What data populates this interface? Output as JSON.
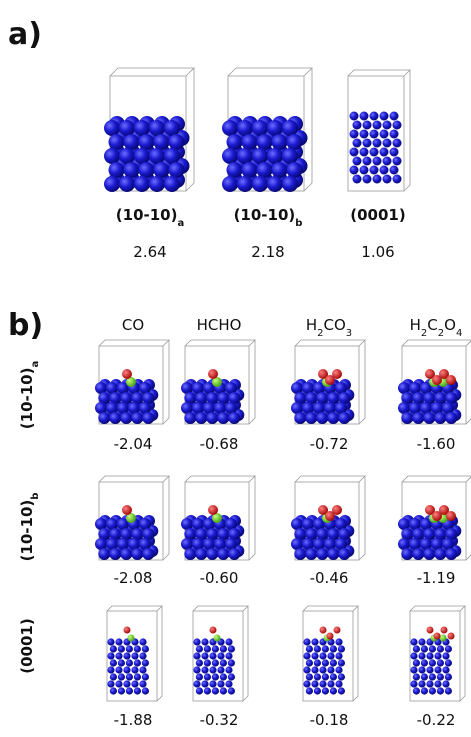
{
  "panel_a": {
    "label": "a)",
    "surfaces": [
      {
        "name": "(10-10)",
        "subscript": "a",
        "value": "2.64"
      },
      {
        "name": "(10-10)",
        "subscript": "b",
        "value": "2.18"
      },
      {
        "name": "(0001)",
        "value": "1.06"
      }
    ]
  },
  "panel_b": {
    "label": "b)",
    "columns": [
      [
        {
          "text": "CO"
        }
      ],
      [
        {
          "text": "HCHO"
        }
      ],
      [
        {
          "text": "H"
        },
        {
          "text": "2",
          "sub": true
        },
        {
          "text": "CO"
        },
        {
          "text": "3",
          "sub": true
        }
      ],
      [
        {
          "text": "H"
        },
        {
          "text": "2",
          "sub": true
        },
        {
          "text": "C"
        },
        {
          "text": "2",
          "sub": true
        },
        {
          "text": "O"
        },
        {
          "text": "4",
          "sub": true
        }
      ]
    ],
    "rows": [
      {
        "name": "(10-10)",
        "subscript": "a",
        "values": [
          "-2.04",
          "-0.68",
          "-0.72",
          "-1.60"
        ]
      },
      {
        "name": "(10-10)",
        "subscript": "b",
        "values": [
          "-2.08",
          "-0.60",
          "-0.46",
          "-1.19"
        ]
      },
      {
        "name": "(0001)",
        "values": [
          "-1.88",
          "-0.32",
          "-0.18",
          "-0.22"
        ]
      }
    ]
  }
}
